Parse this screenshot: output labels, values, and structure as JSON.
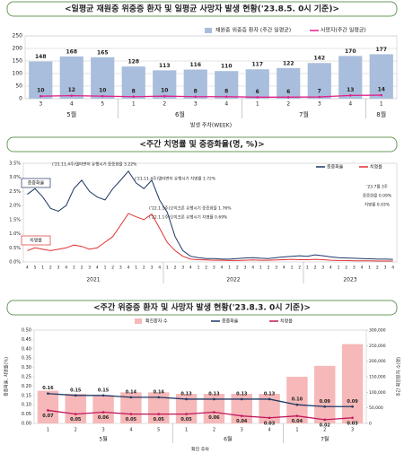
{
  "chart_data": [
    {
      "type": "combo",
      "title": "<일평균 재원중 위중증 환자 및 일평균 사망자 발생 현황('23.8.5. 0시 기준)>",
      "groups": [
        {
          "name": "5월",
          "categories": [
            "3",
            "4",
            "5"
          ]
        },
        {
          "name": "6월",
          "categories": [
            "1",
            "2",
            "3",
            "4"
          ]
        },
        {
          "name": "7월",
          "categories": [
            "1",
            "2",
            "3",
            "4"
          ]
        },
        {
          "name": "8월",
          "categories": [
            "1"
          ]
        }
      ],
      "x_label": "발생 주차(WEEK)",
      "ylim": [
        0,
        250
      ],
      "yticks": [
        0,
        50,
        100,
        150,
        200,
        250
      ],
      "grid": true,
      "data_labels": true,
      "series": [
        {
          "name": "재원중 위중증 환자 (주간 일평균)",
          "kind": "bar",
          "color": "#a9bedc",
          "values": [
            148,
            168,
            165,
            128,
            113,
            116,
            110,
            117,
            122,
            142,
            170,
            177
          ]
        },
        {
          "name": "사망자(주간 일평균)",
          "kind": "line",
          "color": "#e0218a",
          "label_color": "#e0218a",
          "values": [
            10,
            12,
            10,
            8,
            10,
            8,
            8,
            6,
            6,
            7,
            13,
            14
          ]
        }
      ]
    },
    {
      "type": "line",
      "title": "<주간 치명률 및 중증화율(명, %)>",
      "groups": [
        {
          "name": "2021",
          "categories": [
            "4",
            "5",
            "1",
            "2",
            "3",
            "4",
            "1",
            "2",
            "3",
            "4",
            "1",
            "2",
            "3",
            "4",
            "1",
            "2",
            "3",
            "4"
          ]
        },
        {
          "name": "2022",
          "categories": [
            "1",
            "2",
            "3",
            "4",
            "1",
            "2",
            "3",
            "4",
            "1",
            "2",
            "3",
            "4",
            "1",
            "2",
            "3",
            "4",
            "1",
            "2"
          ]
        },
        {
          "name": "2023",
          "categories": [
            "1",
            "2",
            "3",
            "4",
            "1",
            "2",
            "3",
            "4",
            "1",
            "2",
            "3",
            "4"
          ]
        }
      ],
      "ylim": [
        0,
        3.5
      ],
      "yticks": [
        {
          "value": 0,
          "label": "0.0%"
        },
        {
          "value": 0.5,
          "label": "0.5%"
        },
        {
          "value": 1,
          "label": "1.0%"
        },
        {
          "value": 1.5,
          "label": "1.5%"
        },
        {
          "value": 2,
          "label": "2.0%"
        },
        {
          "value": 2.5,
          "label": "2.5%"
        },
        {
          "value": 3,
          "label": "3.0%"
        },
        {
          "value": 3.5,
          "label": "3.5%"
        }
      ],
      "grid": false,
      "data_labels": false,
      "series": [
        {
          "name": "중증화율",
          "kind": "line",
          "color": "#1f3864",
          "values": [
            2.4,
            2.6,
            2.3,
            1.9,
            1.8,
            2.0,
            2.6,
            2.9,
            2.5,
            2.3,
            2.2,
            2.6,
            2.9,
            3.22,
            2.8,
            2.6,
            2.9,
            2.2,
            1.76,
            0.9,
            0.4,
            0.2,
            0.15,
            0.12,
            0.12,
            0.1,
            0.1,
            0.12,
            0.14,
            0.15,
            0.13,
            0.12,
            0.15,
            0.18,
            0.2,
            0.22,
            0.2,
            0.25,
            0.22,
            0.18,
            0.15,
            0.14,
            0.13,
            0.12,
            0.11,
            0.1,
            0.1,
            0.09
          ]
        },
        {
          "name": "치명률",
          "kind": "line",
          "color": "#e03030",
          "values": [
            0.4,
            0.5,
            0.45,
            0.4,
            0.45,
            0.5,
            0.6,
            0.55,
            0.45,
            0.5,
            0.7,
            0.9,
            1.3,
            1.72,
            1.6,
            1.5,
            1.7,
            1.2,
            0.69,
            0.4,
            0.2,
            0.1,
            0.08,
            0.07,
            0.06,
            0.06,
            0.05,
            0.05,
            0.06,
            0.07,
            0.06,
            0.06,
            0.07,
            0.08,
            0.09,
            0.08,
            0.08,
            0.09,
            0.08,
            0.06,
            0.05,
            0.05,
            0.04,
            0.04,
            0.04,
            0.03,
            0.03,
            0.03
          ]
        }
      ],
      "annotations": [
        {
          "text": "('21.11.4주)델타변이 유행시기 중증화율 3.22%",
          "color": "#222"
        },
        {
          "text": "('21.11.4주)델타변이 유행시기 치명률 1.72%",
          "color": "#222"
        },
        {
          "text": "('22.1.1주)오미크론 유행시기 중증화율 1.76%",
          "color": "#222"
        },
        {
          "text": "('22.1.1주)오미크론 유행시기 치명률 0.69%",
          "color": "#222"
        },
        {
          "text": "중증화율",
          "color": "#1f3864"
        },
        {
          "text": "치명률",
          "color": "#e03030"
        },
        {
          "text": "'23.7월 3주",
          "color": "#222"
        },
        {
          "text": "중증화율 0.09%",
          "color": "#222"
        },
        {
          "text": "치명률 0.03%",
          "color": "#222"
        }
      ]
    },
    {
      "type": "combo",
      "title": "<주간 위중증 환자 및 사망자 발생 현황('23.8.3. 0시 기준)>",
      "groups": [
        {
          "name": "5월",
          "categories": [
            "1",
            "2",
            "3",
            "4",
            "5"
          ]
        },
        {
          "name": "6월",
          "categories": [
            "1",
            "2",
            "3",
            "4"
          ]
        },
        {
          "name": "7월",
          "categories": [
            "1",
            "2",
            "3"
          ]
        }
      ],
      "x_label": "확진 주차",
      "y_label": "중증화율, 치명률(%)",
      "y2_label": "주간 확진환자 수(명)",
      "ylim": [
        0,
        0.5
      ],
      "yticks": [
        {
          "value": 0,
          "label": "0.00"
        },
        {
          "value": 0.05,
          "label": "0.05"
        },
        {
          "value": 0.1,
          "label": "0.10"
        },
        {
          "value": 0.15,
          "label": "0.15"
        },
        {
          "value": 0.2,
          "label": "0.20"
        },
        {
          "value": 0.25,
          "label": "0.25"
        },
        {
          "value": 0.3,
          "label": "0.30"
        },
        {
          "value": 0.35,
          "label": "0.35"
        },
        {
          "value": 0.4,
          "label": "0.40"
        },
        {
          "value": 0.45,
          "label": "0.45"
        },
        {
          "value": 0.5,
          "label": "0.50"
        }
      ],
      "y2lim": [
        0,
        300000
      ],
      "y2ticks": [
        0,
        {
          "value": 50000,
          "label": "50,000"
        },
        {
          "value": 100000,
          "label": "100,000"
        },
        {
          "value": 150000,
          "label": "150,000"
        },
        {
          "value": 200000,
          "label": "200,000"
        },
        {
          "value": 250000,
          "label": "250,000"
        },
        {
          "value": 300000,
          "label": "300,000"
        }
      ],
      "grid": false,
      "data_labels": true,
      "series": [
        {
          "name": "확진환자 수",
          "kind": "bar",
          "axis": "y2",
          "color": "#f6b8b8",
          "no_labels": true,
          "values": [
            105000,
            95000,
            90000,
            100000,
            100000,
            95000,
            95000,
            95000,
            95000,
            150000,
            185000,
            255000
          ]
        },
        {
          "name": "중증화율",
          "kind": "line",
          "color": "#1f3864",
          "values": [
            0.16,
            0.15,
            0.15,
            0.14,
            0.14,
            0.13,
            0.13,
            0.13,
            0.13,
            0.1,
            0.09,
            0.09
          ],
          "value_labels": [
            "0.16",
            "0.15",
            "0.15",
            "0.14",
            "0.14",
            "0.13",
            "0.13",
            "0.13",
            "0.13",
            "0.10",
            "0.09",
            "0.09"
          ]
        },
        {
          "name": "치명률",
          "kind": "line",
          "color": "#c0185c",
          "below": true,
          "values": [
            0.07,
            0.05,
            0.06,
            0.05,
            0.05,
            0.05,
            0.06,
            0.04,
            0.03,
            0.04,
            0.02,
            0.03
          ],
          "value_labels": [
            "0.07",
            "0.05",
            "0.06",
            "0.05",
            "0.05",
            "0.05",
            "0.06",
            "0.04",
            "0.03",
            "0.04",
            "0.02",
            "0.03"
          ]
        }
      ]
    }
  ]
}
